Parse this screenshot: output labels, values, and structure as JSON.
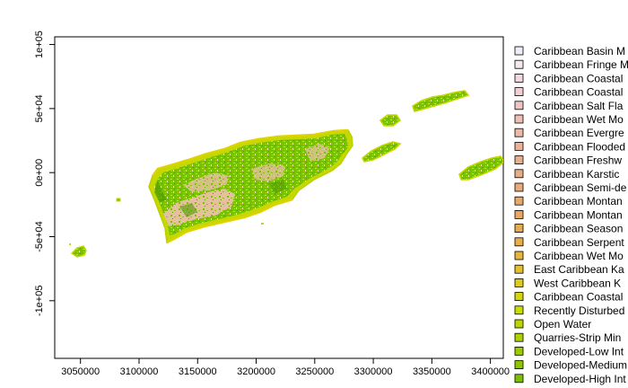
{
  "map": {
    "type": "raster-map",
    "x_ticks": [
      "3050000",
      "3100000",
      "3150000",
      "3200000",
      "3250000",
      "3300000",
      "3350000",
      "3400000"
    ],
    "x_values": [
      3050000,
      3100000,
      3150000,
      3200000,
      3250000,
      3300000,
      3350000,
      3400000
    ],
    "y_ticks": [
      "1e+05",
      "5e+04",
      "0e+00",
      "-5e+04",
      "-1e+05"
    ],
    "y_values": [
      100000,
      50000,
      0,
      -50000,
      -100000
    ],
    "xlim": [
      3028000,
      3411000
    ],
    "ylim": [
      -145000,
      106000
    ],
    "grid": false,
    "legend_position": "right",
    "colors": {
      "shrubland": "#e3c19a",
      "forest": "#79c200",
      "forest_dark": "#4f9b00",
      "edge": "#c6d800",
      "edge_yellow": "#dcd400",
      "light": "#eaf3c8"
    },
    "legend": [
      {
        "label": "Caribbean Basin M",
        "color": "#eeeef6"
      },
      {
        "label": "Caribbean Fringe M",
        "color": "#f3e9ef"
      },
      {
        "label": "Caribbean Coastal",
        "color": "#f2d9e0"
      },
      {
        "label": "Caribbean Coastal",
        "color": "#f2cfd3"
      },
      {
        "label": "Caribbean Salt Fla",
        "color": "#f0c6c4"
      },
      {
        "label": "Caribbean Wet Mo",
        "color": "#efc0b6"
      },
      {
        "label": "Caribbean Evergre",
        "color": "#edbaa8"
      },
      {
        "label": "Caribbean Flooded",
        "color": "#ebb39a"
      },
      {
        "label": "Caribbean Freshw",
        "color": "#e9b08f"
      },
      {
        "label": "Caribbean Karstic",
        "color": "#e8ae86"
      },
      {
        "label": "Caribbean Semi-de",
        "color": "#e8ab7b"
      },
      {
        "label": "Caribbean Montan",
        "color": "#e8a96f"
      },
      {
        "label": "Caribbean Montan",
        "color": "#e8a860"
      },
      {
        "label": "Caribbean Season",
        "color": "#e8ab52"
      },
      {
        "label": "Caribbean Serpent",
        "color": "#e8b046"
      },
      {
        "label": "Caribbean Wet Mo",
        "color": "#e6b63b"
      },
      {
        "label": "East Caribbean Ka",
        "color": "#e3c02e"
      },
      {
        "label": "West Caribbean K",
        "color": "#ddcc1e"
      },
      {
        "label": "Caribbean Coastal",
        "color": "#d5d60e"
      },
      {
        "label": "Recently Disturbed",
        "color": "#cadc00"
      },
      {
        "label": "Open Water",
        "color": "#bcd800"
      },
      {
        "label": "Quarries-Strip Min",
        "color": "#acd300"
      },
      {
        "label": "Developed-Low Int",
        "color": "#9bcc00"
      },
      {
        "label": "Developed-Medium",
        "color": "#8bc600"
      },
      {
        "label": "Developed-High Int",
        "color": "#7cc000"
      }
    ]
  }
}
